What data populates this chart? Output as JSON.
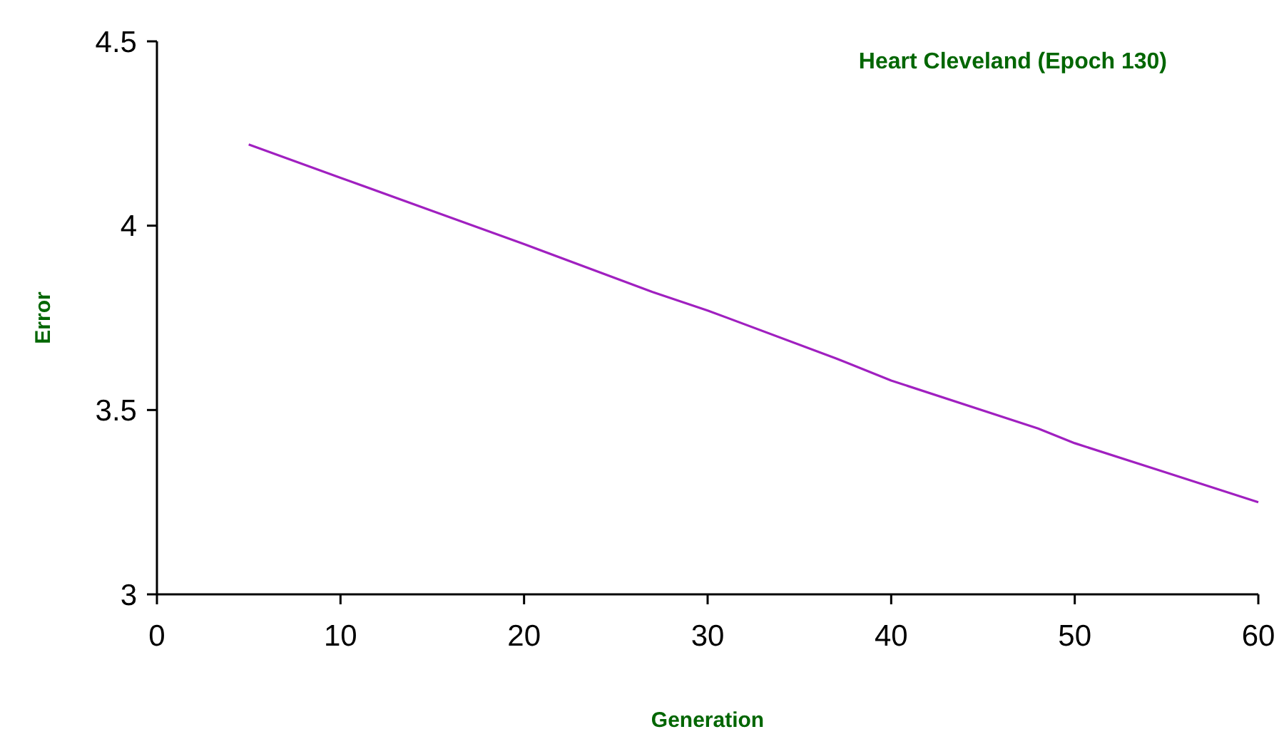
{
  "chart_data": {
    "type": "line",
    "title": "Heart Cleveland (Epoch 130)",
    "xlabel": "Generation",
    "ylabel": "Error",
    "x": [
      5,
      10,
      15,
      20,
      27,
      30,
      37,
      40,
      48,
      50,
      55,
      60
    ],
    "series": [
      {
        "color": "#a020c0",
        "values": [
          4.22,
          4.13,
          4.04,
          3.95,
          3.82,
          3.77,
          3.64,
          3.58,
          3.45,
          3.41,
          3.33,
          3.25
        ]
      }
    ],
    "xlim": [
      0,
      60
    ],
    "xticks": [
      0,
      10,
      20,
      30,
      40,
      50,
      60
    ],
    "ylim": [
      3,
      4.5
    ],
    "yticks": [
      3,
      3.5,
      4,
      4.5
    ],
    "marker": "none",
    "line_style": "solid"
  }
}
